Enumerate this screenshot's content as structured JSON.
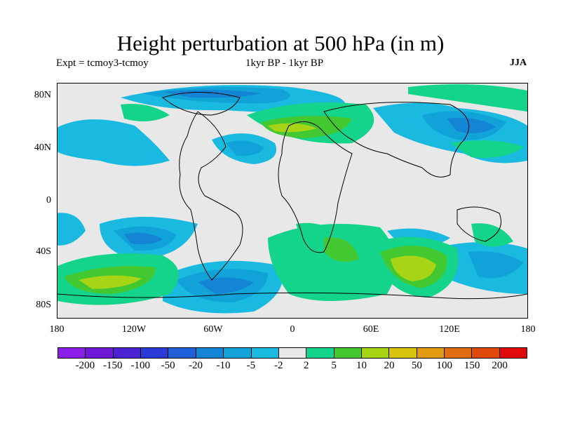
{
  "title": "Height perturbation at 500 hPa (in m)",
  "experiment": "Expt = tcmoy3-tcmoy",
  "period": "1kyr BP - 1kyr BP",
  "season": "JJA",
  "y_ticks": [
    "80N",
    "40N",
    "0",
    "40S",
    "80S"
  ],
  "x_ticks": [
    "180",
    "120W",
    "60W",
    "0",
    "60E",
    "120E",
    "180"
  ],
  "colorbar": {
    "labels": [
      "-200",
      "-150",
      "-100",
      "-50",
      "-20",
      "-10",
      "-5",
      "-2",
      "2",
      "5",
      "10",
      "20",
      "50",
      "100",
      "150",
      "200"
    ],
    "colors": [
      "#8a1ee8",
      "#6d19d6",
      "#4a24d2",
      "#2a3ad6",
      "#1f5fd8",
      "#1484d4",
      "#11a3d8",
      "#1ab9e0",
      "#e8e8e8",
      "#14d48c",
      "#43c832",
      "#a7d414",
      "#d8c40c",
      "#e29a12",
      "#e06e10",
      "#e04a0c",
      "#e00a0a"
    ]
  },
  "map": {
    "background_color": "#e8e8e8",
    "coastline_color": "#000000"
  }
}
